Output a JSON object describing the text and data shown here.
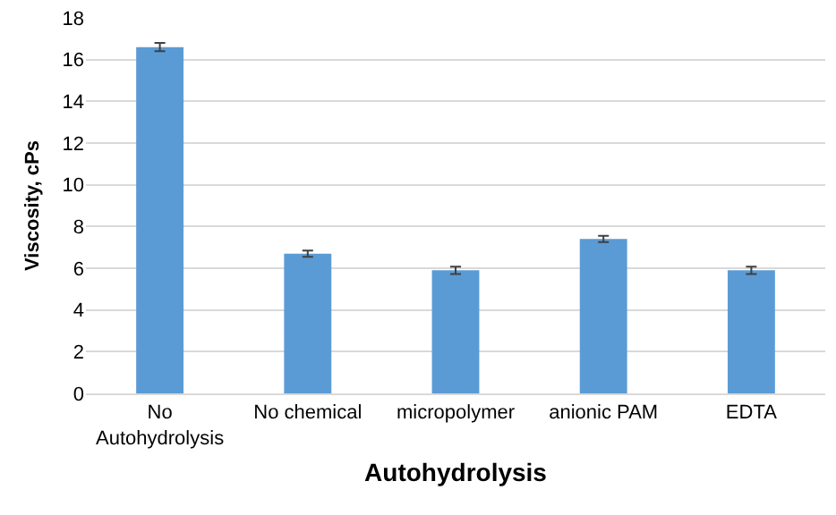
{
  "chart_data": {
    "type": "bar",
    "xlabel": "Autohydrolysis",
    "ylabel": "Viscosity, cPs",
    "categories": [
      "No Autohydrolysis",
      "No chemical",
      "micropolymer",
      "anionic PAM",
      "EDTA"
    ],
    "values": [
      16.6,
      6.7,
      5.9,
      7.4,
      5.9
    ],
    "errors": [
      0.2,
      0.15,
      0.18,
      0.15,
      0.18
    ],
    "color": "#5b9bd5",
    "ylim": [
      0,
      18
    ],
    "yticks": [
      0,
      2,
      4,
      6,
      8,
      10,
      12,
      14,
      16,
      18
    ],
    "grid": "y"
  }
}
